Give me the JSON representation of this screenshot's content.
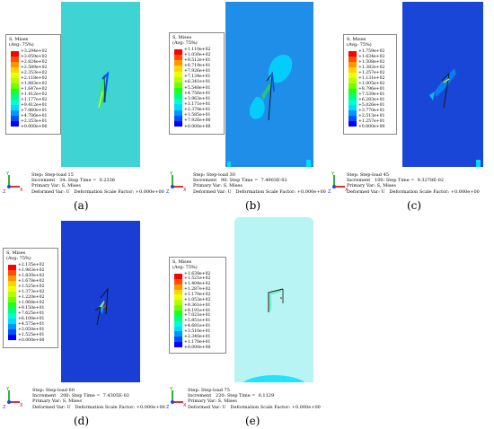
{
  "legend_title": [
    "S, Mises",
    "(Avg: 75%)"
  ],
  "legend_colors": [
    "#ff0000",
    "#ff5000",
    "#ff9600",
    "#ffd200",
    "#ebff00",
    "#b4ff00",
    "#6eff00",
    "#1eff1e",
    "#00ff7a",
    "#00ffd2",
    "#00dcff",
    "#0096ff",
    "#0050ff",
    "#0000ff"
  ],
  "info_labels": {
    "step": "Step: ",
    "increment": "Increment",
    "step_time": "Step Time =",
    "primary": "Primary Var: S, Mises",
    "deformed": "Deformed Var: U   Deformation Scale Factor: +0.000e+00"
  },
  "triad": {
    "x": "X",
    "y": "Y",
    "z": "Z"
  },
  "panels": [
    {
      "id": "a",
      "caption": "(a)",
      "model_color": "#3fd3d3",
      "legend_values": [
        "+3.294e+02",
        "+3.059e+02",
        "+2.824e+02",
        "+2.589e+02",
        "+2.353e+02",
        "+2.118e+02",
        "+1.883e+02",
        "+1.647e+02",
        "+1.412e+02",
        "+1.177e+02",
        "+9.412e+01",
        "+7.060e+01",
        "+4.706e+01",
        "+2.353e+01",
        "+0.000e+00"
      ],
      "step_name": "Step-load 15",
      "increment_no": "34:",
      "step_time": "0.2336"
    },
    {
      "id": "b",
      "caption": "(b)",
      "model_color": "#1e8ee8",
      "legend_values": [
        "+1.110e+02",
        "+1.030e+02",
        "+9.512e+01",
        "+8.719e+01",
        "+7.926e+01",
        "+7.134e+01",
        "+6.341e+01",
        "+5.548e+01",
        "+4.756e+01",
        "+3.963e+01",
        "+3.171e+01",
        "+2.378e+01",
        "+1.585e+01",
        "+7.926e+00",
        "+0.000e+00"
      ],
      "step_name": "Step-load 30",
      "increment_no": "90:",
      "step_time": "7.4903E-02"
    },
    {
      "id": "c",
      "caption": "(c)",
      "model_color": "#1a46d8",
      "legend_values": [
        "+1.759e+02",
        "+1.634e+02",
        "+1.508e+02",
        "+1.382e+02",
        "+1.257e+02",
        "+1.131e+02",
        "+1.005e+02",
        "+8.796e+01",
        "+7.539e+01",
        "+6.283e+01",
        "+5.026e+01",
        "+3.770e+01",
        "+2.513e+01",
        "+1.257e+01",
        "+0.000e+00"
      ],
      "step_name": "Step-load 45",
      "increment_no": "100:",
      "step_time": "9.3278E-02"
    },
    {
      "id": "d",
      "caption": "(d)",
      "model_color": "#1a3ed4",
      "legend_values": [
        "+2.135e+02",
        "+1.983e+02",
        "+1.830e+02",
        "+1.678e+02",
        "+1.525e+02",
        "+1.373e+02",
        "+1.220e+02",
        "+1.068e+02",
        "+9.150e+01",
        "+7.625e+01",
        "+6.100e+01",
        "+4.575e+01",
        "+3.050e+01",
        "+1.525e+01",
        "+0.000e+00"
      ],
      "step_name": "Step-load 60",
      "increment_no": "200:",
      "step_time": "7.4305E-02"
    },
    {
      "id": "e",
      "caption": "(e)",
      "model_color": "#b8f4f4",
      "legend_values": [
        "+1.638e+02",
        "+1.521e+02",
        "+1.404e+02",
        "+1.287e+02",
        "+1.170e+02",
        "+1.053e+02",
        "+9.361e+01",
        "+8.191e+01",
        "+7.021e+01",
        "+5.851e+01",
        "+4.681e+01",
        "+3.510e+01",
        "+2.340e+01",
        "+1.170e+01",
        "+0.000e+00"
      ],
      "step_name": "Step-load 75",
      "increment_no": "220:",
      "step_time": "0.1129"
    }
  ]
}
